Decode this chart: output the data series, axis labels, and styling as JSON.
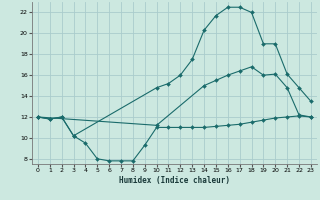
{
  "xlabel": "Humidex (Indice chaleur)",
  "background_color": "#cce8e0",
  "grid_color": "#aacccc",
  "line_color": "#1a6b6b",
  "xlim": [
    -0.5,
    23.5
  ],
  "ylim": [
    7.5,
    23.0
  ],
  "xticks": [
    0,
    1,
    2,
    3,
    4,
    5,
    6,
    7,
    8,
    9,
    10,
    11,
    12,
    13,
    14,
    15,
    16,
    17,
    18,
    19,
    20,
    21,
    22,
    23
  ],
  "yticks": [
    8,
    10,
    12,
    14,
    16,
    18,
    20,
    22
  ],
  "line1_x": [
    0,
    1,
    2,
    3,
    4,
    5,
    6,
    7,
    8,
    9,
    10,
    11,
    12,
    13,
    14,
    15,
    16,
    17,
    18,
    19,
    20,
    21,
    22,
    23
  ],
  "line1_y": [
    12,
    11.8,
    12,
    10.2,
    9.5,
    8.0,
    7.8,
    7.8,
    7.8,
    9.3,
    11.0,
    11.0,
    11.0,
    11.0,
    11.0,
    11.1,
    11.2,
    11.3,
    11.5,
    11.7,
    11.9,
    12.0,
    12.1,
    12.0
  ],
  "line2_x": [
    0,
    1,
    2,
    3,
    10,
    11,
    12,
    13,
    14,
    15,
    16,
    17,
    18,
    19,
    20,
    21,
    22,
    23
  ],
  "line2_y": [
    12,
    11.8,
    12,
    10.2,
    14.8,
    15.2,
    16.0,
    17.5,
    20.3,
    21.7,
    22.5,
    22.5,
    22.0,
    19.0,
    19.0,
    16.1,
    14.8,
    13.5
  ],
  "line3_x": [
    0,
    10,
    14,
    15,
    16,
    17,
    18,
    19,
    20,
    21,
    22,
    23
  ],
  "line3_y": [
    12,
    11.2,
    15.0,
    15.5,
    16.0,
    16.4,
    16.8,
    16.0,
    16.1,
    14.8,
    12.2,
    12.0
  ]
}
